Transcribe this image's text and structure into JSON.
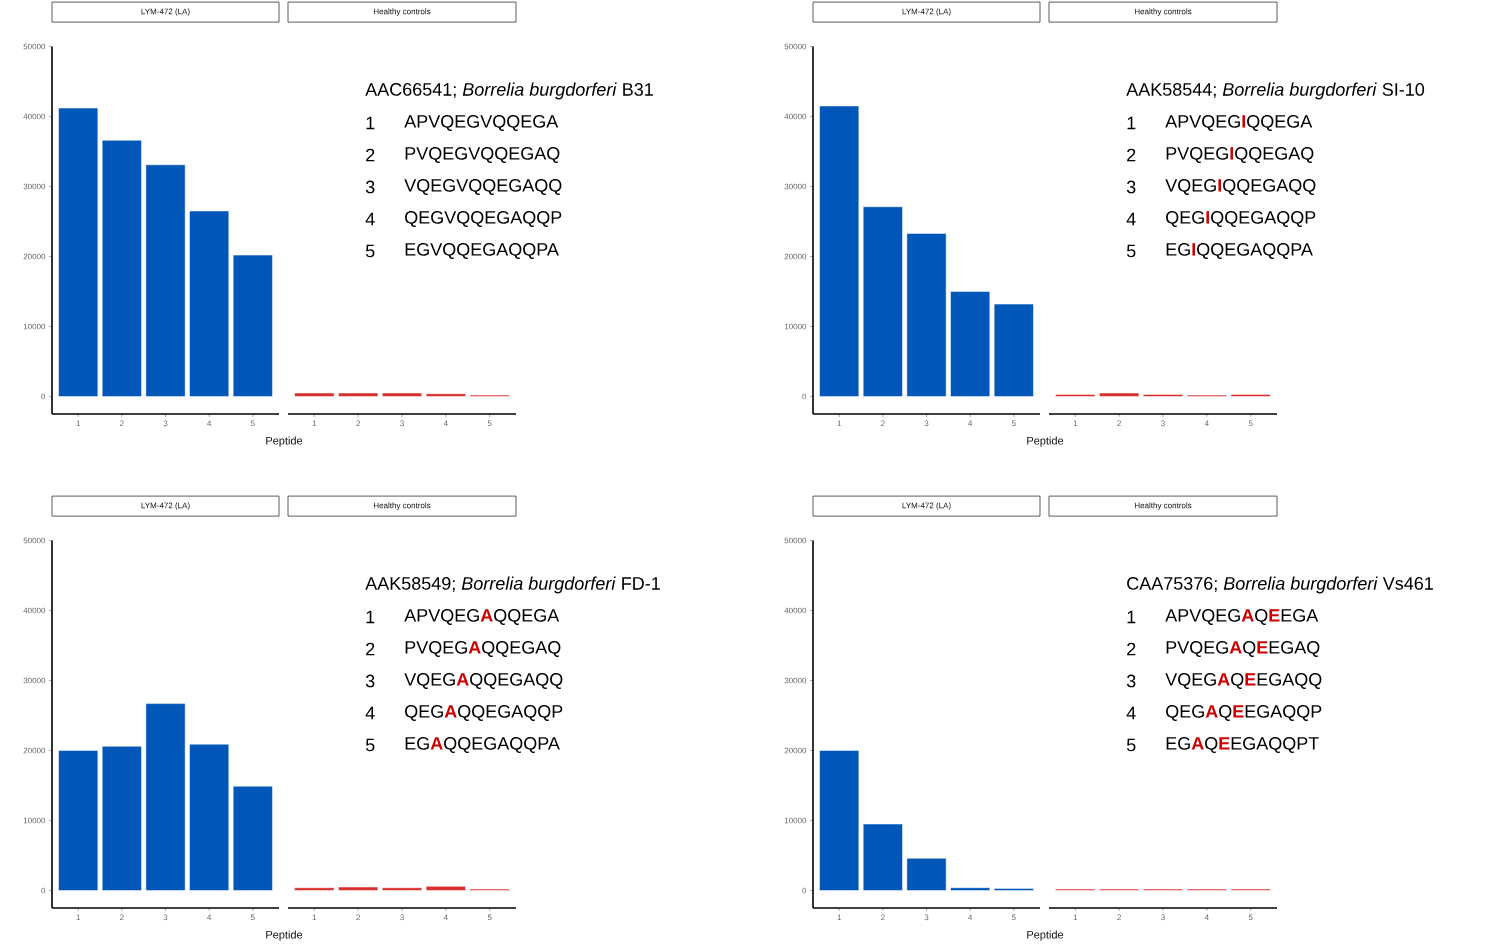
{
  "chart_data": [
    {
      "type": "bar",
      "title": "LYM-472 (LA)",
      "xlabel": "Peptide",
      "categories": [
        "1",
        "2",
        "3",
        "4",
        "5"
      ],
      "values": [
        41200,
        36600,
        33100,
        26500,
        20200
      ],
      "color": "#0057b7",
      "ylim": [
        -2500,
        50000
      ],
      "yticks": [
        0,
        10000,
        20000,
        30000,
        40000,
        50000
      ]
    },
    {
      "type": "bar",
      "title": "Healthy controls",
      "categories": [
        "1",
        "2",
        "3",
        "4",
        "5"
      ],
      "values": [
        500,
        500,
        500,
        400,
        200
      ],
      "color": "#d7312f",
      "ylim": [
        -2500,
        50000
      ],
      "yticks": [
        0,
        10000,
        20000,
        30000,
        40000,
        50000
      ],
      "tick_labels": "x",
      "annotations": [
        "AAC66541; *Borrelia burgdorferi* B31",
        "1",
        "APVQEGVQQEGA",
        "2",
        "PVQEGVQQEGAQ",
        "3",
        "VQEGVQQEGAQQ",
        "4",
        "QEGVQQEGAQQP",
        "5",
        "EGVQQEGAQQPA"
      ]
    },
    {
      "type": "bar",
      "title": "LYM-472 (LA)",
      "xlabel": "Peptide",
      "categories": [
        "1",
        "2",
        "3",
        "4",
        "5"
      ],
      "values": [
        41500,
        27100,
        23300,
        15000,
        13200
      ],
      "color": "#0057b7",
      "ylim": [
        -2500,
        50000
      ],
      "yticks": [
        0,
        10000,
        20000,
        30000,
        40000,
        50000
      ]
    },
    {
      "type": "bar",
      "title": "Healthy controls",
      "categories": [
        "1",
        "2",
        "3",
        "4",
        "5"
      ],
      "values": [
        300,
        500,
        300,
        200,
        300
      ],
      "color": "#d7312f",
      "ylim": [
        -2500,
        50000
      ],
      "yticks": [
        0,
        10000,
        20000,
        30000,
        40000,
        50000
      ],
      "tick_labels": "x",
      "annotations": [
        "AAK58544; *Borrelia burgdorferi* SI-10",
        "1",
        "APVQEG**I**QQEGA",
        "2",
        "PVQEG**I**QQEGAQ",
        "3",
        "VQEG**I**QQEGAQQ",
        "4",
        "QEG**I**QQEGAQQP",
        "5",
        "EG**I**QQEGAQQPA"
      ]
    },
    {
      "type": "bar",
      "title": "LYM-472 (LA)",
      "xlabel": "Peptide",
      "categories": [
        "1",
        "2",
        "3",
        "4",
        "5"
      ],
      "values": [
        20000,
        20600,
        26700,
        20900,
        14900
      ],
      "color": "#0057b7",
      "ylim": [
        -2500,
        50000
      ],
      "yticks": [
        0,
        10000,
        20000,
        30000,
        40000,
        50000
      ]
    },
    {
      "type": "bar",
      "title": "Healthy controls",
      "categories": [
        "1",
        "2",
        "3",
        "4",
        "5"
      ],
      "values": [
        400,
        500,
        400,
        600,
        200
      ],
      "color": "#d7312f",
      "ylim": [
        -2500,
        50000
      ],
      "yticks": [
        0,
        10000,
        20000,
        30000,
        40000,
        50000
      ],
      "tick_labels": "x",
      "annotations": [
        "AAK58549; *Borrelia burgdorferi* FD-1",
        "1",
        "APVQEG**A**QQEGA",
        "2",
        "PVQEG**A**QQEGAQ",
        "3",
        "VQEG**A**QQEGAQQ",
        "4",
        "QEG**A**QQEGAQQP",
        "5",
        "EG**A**QQEGAQQPA"
      ]
    },
    {
      "type": "bar",
      "title": "LYM-472 (LA)",
      "xlabel": "Peptide",
      "categories": [
        "1",
        "2",
        "3",
        "4",
        "5"
      ],
      "values": [
        20000,
        9500,
        4600,
        400,
        300
      ],
      "color": "#0057b7",
      "ylim": [
        -2500,
        50000
      ],
      "yticks": [
        0,
        10000,
        20000,
        30000,
        40000,
        50000
      ]
    },
    {
      "type": "bar",
      "title": "Healthy controls",
      "categories": [
        "1",
        "2",
        "3",
        "4",
        "5"
      ],
      "values": [
        200,
        200,
        200,
        200,
        200
      ],
      "color": "#d7312f",
      "ylim": [
        -2500,
        50000
      ],
      "yticks": [
        0,
        10000,
        20000,
        30000,
        40000,
        50000
      ],
      "tick_labels": "x",
      "annotations": [
        "CAA75376; *Borrelia burgdorferi* Vs461",
        "1",
        "APVQEG**A**Q**E**EGA",
        "2",
        "PVQEG**A**Q**E**EGAQ",
        "3",
        "VQEG**A**Q**E**EGAQQ",
        "4",
        "QEG**A**Q**E**EGAQQP",
        "5",
        "EG**A**Q**E**EGAQQPT"
      ]
    }
  ]
}
